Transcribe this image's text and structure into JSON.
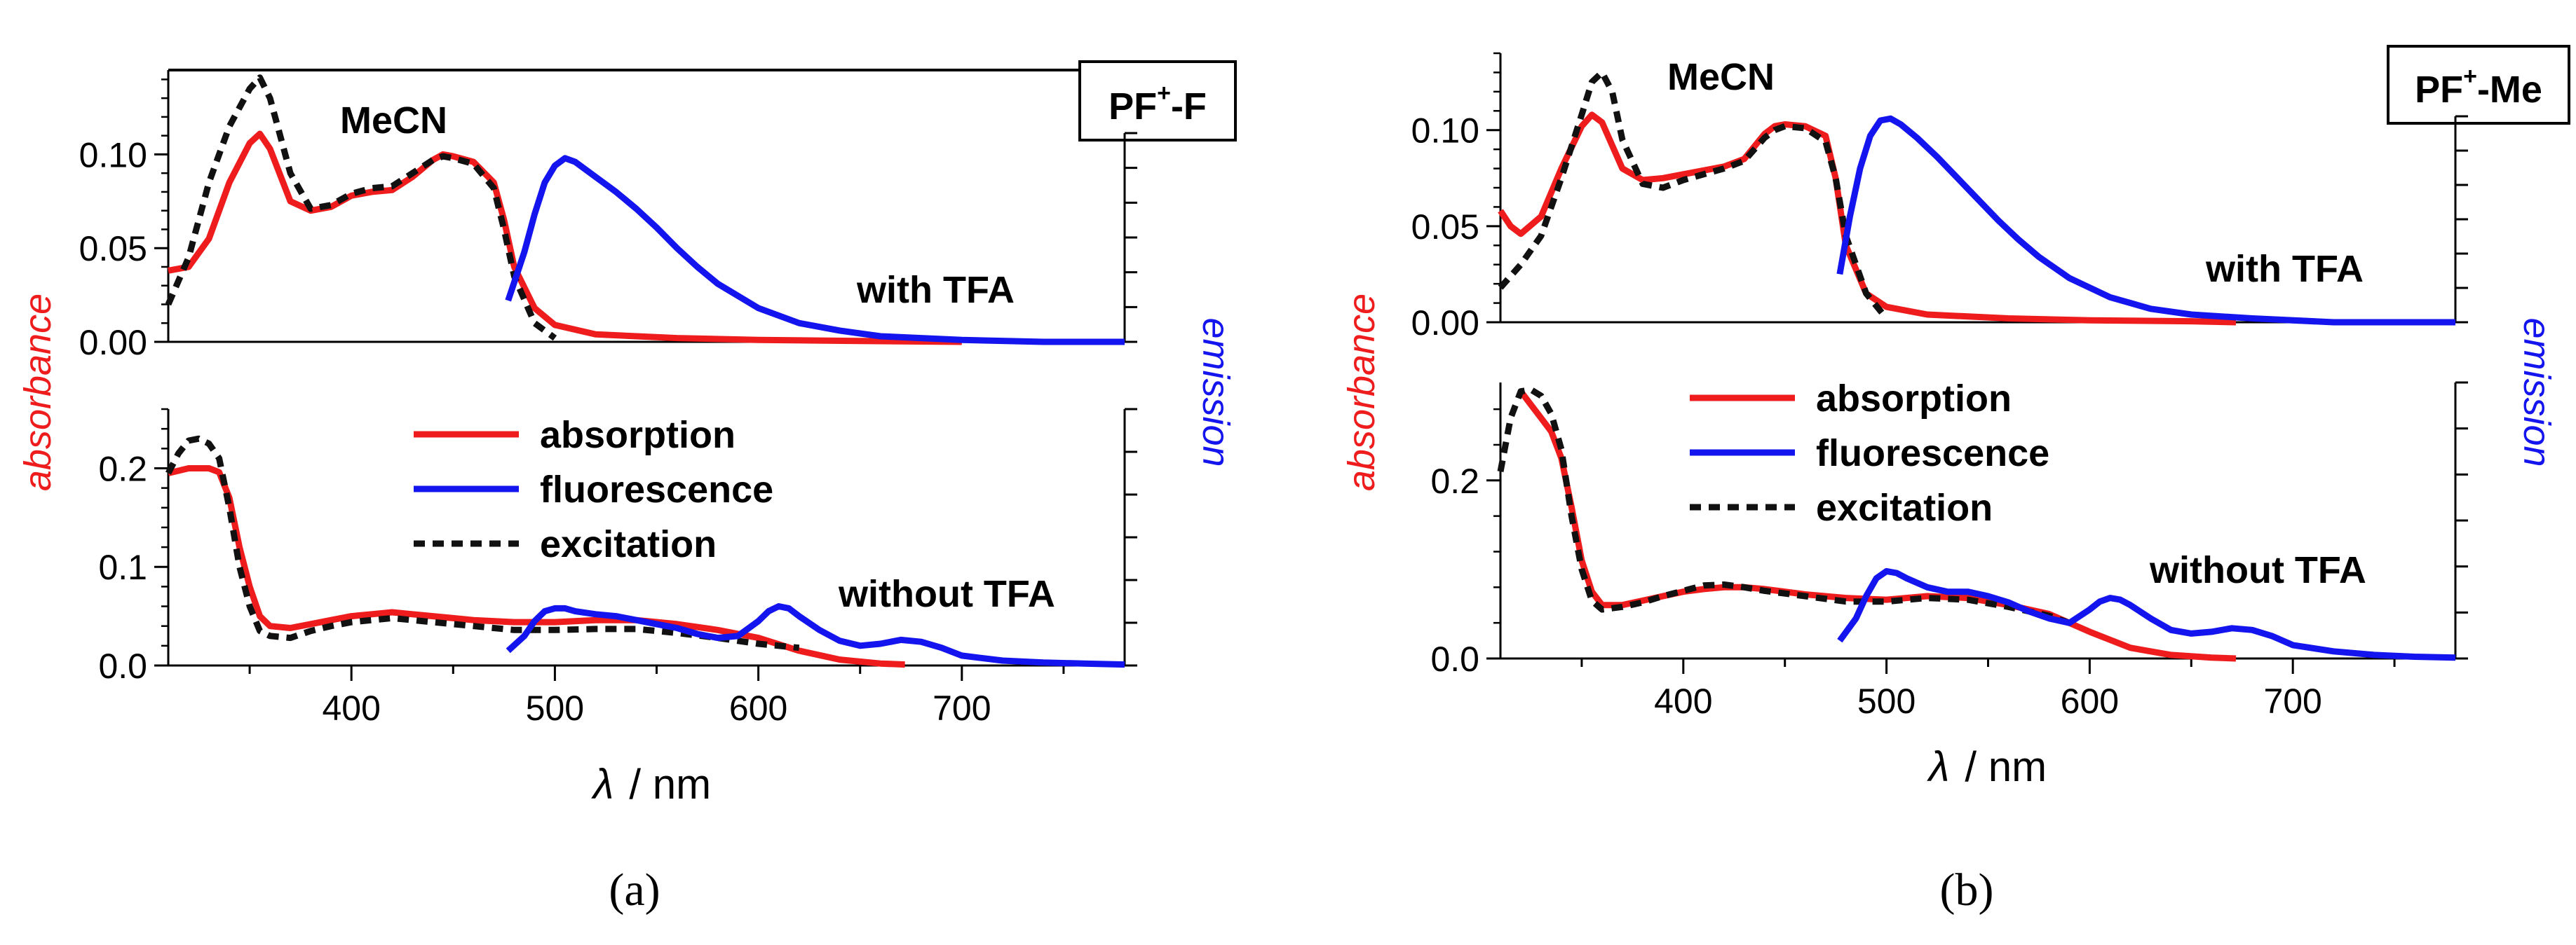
{
  "figure": {
    "captions": [
      "(a)",
      "(b)"
    ]
  },
  "chart_data": [
    {
      "type": "line",
      "tag": "PF",
      "tag_sup": "+",
      "tag_tail": "-F",
      "solvent_label": "MeCN",
      "xlabel_symbol": "λ",
      "xlabel_unit": "/  nm",
      "ylabel_left": "absorbance",
      "ylabel_right": "emission",
      "colors": {
        "absorption": "#ee1c1c",
        "fluorescence": "#1414ee",
        "excitation": "#111111"
      },
      "x_ticks": [
        400,
        500,
        600,
        700
      ],
      "xlim": [
        310,
        780
      ],
      "panels": [
        {
          "label": "with TFA",
          "ylim": [
            0,
            0.145
          ],
          "y_ticks": [
            0.0,
            0.05,
            0.1
          ],
          "y_tick_labels": [
            "0.00",
            "0.05",
            "0.10"
          ],
          "series": [
            {
              "name": "absorption",
              "x": [
                310,
                320,
                330,
                340,
                350,
                355,
                360,
                370,
                380,
                390,
                400,
                410,
                420,
                430,
                440,
                445,
                450,
                460,
                470,
                475,
                480,
                490,
                500,
                520,
                560,
                600,
                650,
                700
              ],
              "y": [
                0.038,
                0.04,
                0.055,
                0.085,
                0.106,
                0.111,
                0.103,
                0.075,
                0.07,
                0.072,
                0.078,
                0.08,
                0.081,
                0.088,
                0.097,
                0.1,
                0.099,
                0.096,
                0.085,
                0.065,
                0.04,
                0.018,
                0.009,
                0.004,
                0.002,
                0.001,
                0.0005,
                0.0
              ]
            },
            {
              "name": "excitation",
              "x": [
                310,
                320,
                330,
                340,
                350,
                355,
                360,
                370,
                380,
                390,
                400,
                410,
                420,
                430,
                440,
                445,
                450,
                460,
                470,
                475,
                480,
                490,
                500
              ],
              "y": [
                0.02,
                0.045,
                0.085,
                0.115,
                0.135,
                0.141,
                0.13,
                0.09,
                0.071,
                0.073,
                0.079,
                0.082,
                0.083,
                0.09,
                0.097,
                0.099,
                0.098,
                0.095,
                0.082,
                0.06,
                0.035,
                0.01,
                0.002
              ]
            },
            {
              "name": "fluorescence",
              "x": [
                477,
                485,
                490,
                495,
                500,
                505,
                510,
                520,
                530,
                540,
                550,
                560,
                570,
                580,
                600,
                620,
                640,
                660,
                680,
                700,
                740,
                780
              ],
              "y": [
                0.022,
                0.048,
                0.068,
                0.085,
                0.094,
                0.098,
                0.096,
                0.088,
                0.08,
                0.071,
                0.061,
                0.05,
                0.04,
                0.031,
                0.018,
                0.01,
                0.006,
                0.003,
                0.002,
                0.001,
                0.0,
                0.0
              ]
            }
          ]
        },
        {
          "label": "without TFA",
          "ylim": [
            0,
            0.26
          ],
          "y_ticks": [
            0.0,
            0.1,
            0.2
          ],
          "y_tick_labels": [
            "0.0",
            "0.1",
            "0.2"
          ],
          "series": [
            {
              "name": "absorption",
              "x": [
                310,
                320,
                330,
                335,
                340,
                345,
                350,
                355,
                360,
                370,
                380,
                390,
                400,
                410,
                420,
                430,
                440,
                460,
                480,
                500,
                520,
                540,
                560,
                580,
                600,
                620,
                640,
                660,
                672
              ],
              "y": [
                0.195,
                0.2,
                0.2,
                0.196,
                0.17,
                0.12,
                0.08,
                0.05,
                0.04,
                0.038,
                0.042,
                0.046,
                0.05,
                0.052,
                0.054,
                0.052,
                0.05,
                0.046,
                0.044,
                0.044,
                0.046,
                0.046,
                0.042,
                0.036,
                0.028,
                0.015,
                0.006,
                0.002,
                0.001
              ]
            },
            {
              "name": "excitation",
              "x": [
                310,
                315,
                320,
                325,
                330,
                335,
                340,
                345,
                350,
                355,
                360,
                370,
                380,
                390,
                400,
                410,
                420,
                430,
                440,
                460,
                480,
                500,
                520,
                540,
                560,
                580,
                600,
                620
              ],
              "y": [
                0.195,
                0.215,
                0.228,
                0.23,
                0.225,
                0.21,
                0.16,
                0.1,
                0.06,
                0.035,
                0.03,
                0.028,
                0.035,
                0.04,
                0.044,
                0.046,
                0.048,
                0.046,
                0.044,
                0.04,
                0.036,
                0.036,
                0.037,
                0.037,
                0.033,
                0.028,
                0.022,
                0.018
              ]
            },
            {
              "name": "fluorescence",
              "x": [
                477,
                485,
                490,
                495,
                500,
                505,
                510,
                520,
                530,
                540,
                550,
                560,
                570,
                580,
                590,
                600,
                605,
                610,
                615,
                620,
                630,
                640,
                650,
                660,
                670,
                680,
                690,
                700,
                720,
                740,
                760,
                780
              ],
              "y": [
                0.015,
                0.03,
                0.045,
                0.055,
                0.058,
                0.058,
                0.055,
                0.052,
                0.05,
                0.046,
                0.042,
                0.038,
                0.032,
                0.028,
                0.03,
                0.045,
                0.055,
                0.06,
                0.058,
                0.05,
                0.036,
                0.025,
                0.02,
                0.022,
                0.026,
                0.024,
                0.018,
                0.01,
                0.005,
                0.003,
                0.002,
                0.001
              ]
            }
          ]
        }
      ],
      "legend": [
        {
          "name": "absorption",
          "style": "solid"
        },
        {
          "name": "fluorescence",
          "style": "solid"
        },
        {
          "name": "excitation",
          "style": "dotted"
        }
      ]
    },
    {
      "type": "line",
      "tag": "PF",
      "tag_sup": "+",
      "tag_tail": "-Me",
      "solvent_label": "MeCN",
      "xlabel_symbol": "λ",
      "xlabel_unit": "/  nm",
      "ylabel_left": "absorbance",
      "ylabel_right": "emission",
      "colors": {
        "absorption": "#ee1c1c",
        "fluorescence": "#1414ee",
        "excitation": "#111111"
      },
      "x_ticks": [
        400,
        500,
        600,
        700
      ],
      "xlim": [
        310,
        780
      ],
      "panels": [
        {
          "label": "with TFA",
          "ylim": [
            0,
            0.14
          ],
          "y_ticks": [
            0.0,
            0.05,
            0.1
          ],
          "y_tick_labels": [
            "0.00",
            "0.05",
            "0.10"
          ],
          "series": [
            {
              "name": "absorption",
              "x": [
                310,
                315,
                320,
                330,
                340,
                350,
                355,
                360,
                370,
                380,
                390,
                400,
                410,
                420,
                430,
                440,
                445,
                450,
                460,
                470,
                475,
                480,
                490,
                500,
                520,
                560,
                600,
                650,
                672
              ],
              "y": [
                0.058,
                0.05,
                0.046,
                0.055,
                0.08,
                0.102,
                0.108,
                0.104,
                0.08,
                0.074,
                0.075,
                0.077,
                0.079,
                0.081,
                0.085,
                0.098,
                0.102,
                0.103,
                0.102,
                0.097,
                0.075,
                0.04,
                0.015,
                0.008,
                0.004,
                0.002,
                0.001,
                0.0005,
                0.0
              ]
            },
            {
              "name": "excitation",
              "x": [
                310,
                320,
                330,
                340,
                350,
                355,
                360,
                365,
                370,
                380,
                390,
                400,
                410,
                420,
                430,
                440,
                445,
                450,
                460,
                470,
                475,
                480,
                490,
                500
              ],
              "y": [
                0.018,
                0.03,
                0.045,
                0.075,
                0.108,
                0.125,
                0.13,
                0.12,
                0.095,
                0.072,
                0.07,
                0.074,
                0.077,
                0.08,
                0.084,
                0.096,
                0.1,
                0.102,
                0.101,
                0.094,
                0.075,
                0.045,
                0.015,
                0.002
              ]
            },
            {
              "name": "fluorescence",
              "x": [
                477,
                482,
                487,
                492,
                497,
                502,
                507,
                515,
                525,
                535,
                545,
                555,
                565,
                575,
                590,
                610,
                630,
                650,
                680,
                720,
                780
              ],
              "y": [
                0.025,
                0.055,
                0.08,
                0.097,
                0.105,
                0.106,
                0.103,
                0.096,
                0.086,
                0.075,
                0.064,
                0.053,
                0.043,
                0.034,
                0.023,
                0.013,
                0.007,
                0.004,
                0.002,
                0.0,
                0.0
              ]
            }
          ]
        },
        {
          "label": "without TFA",
          "ylim": [
            0,
            0.31
          ],
          "y_ticks": [
            0.0,
            0.2
          ],
          "y_tick_labels": [
            "0.0",
            "0.2"
          ],
          "series": [
            {
              "name": "absorption",
              "x": [
                320,
                325,
                330,
                335,
                340,
                345,
                350,
                355,
                360,
                370,
                380,
                390,
                400,
                410,
                420,
                430,
                440,
                460,
                480,
                500,
                520,
                540,
                560,
                580,
                600,
                620,
                640,
                660,
                672
              ],
              "y": [
                0.3,
                0.285,
                0.27,
                0.255,
                0.225,
                0.17,
                0.11,
                0.075,
                0.06,
                0.06,
                0.065,
                0.07,
                0.075,
                0.078,
                0.08,
                0.08,
                0.078,
                0.072,
                0.068,
                0.066,
                0.07,
                0.068,
                0.06,
                0.05,
                0.03,
                0.012,
                0.004,
                0.001,
                0.0
              ]
            },
            {
              "name": "excitation",
              "x": [
                310,
                315,
                320,
                325,
                330,
                335,
                340,
                345,
                350,
                355,
                360,
                370,
                380,
                390,
                400,
                410,
                420,
                430,
                440,
                460,
                480,
                500,
                520,
                540,
                560,
                580,
                590
              ],
              "y": [
                0.21,
                0.27,
                0.3,
                0.302,
                0.295,
                0.275,
                0.235,
                0.16,
                0.1,
                0.065,
                0.055,
                0.058,
                0.063,
                0.07,
                0.076,
                0.082,
                0.083,
                0.08,
                0.076,
                0.07,
                0.064,
                0.064,
                0.068,
                0.066,
                0.058,
                0.048,
                0.04
              ]
            },
            {
              "name": "fluorescence",
              "x": [
                477,
                485,
                490,
                495,
                500,
                505,
                510,
                520,
                530,
                540,
                550,
                560,
                570,
                580,
                590,
                600,
                605,
                610,
                615,
                620,
                630,
                640,
                650,
                660,
                670,
                680,
                690,
                700,
                720,
                740,
                760,
                780
              ],
              "y": [
                0.02,
                0.045,
                0.07,
                0.09,
                0.098,
                0.096,
                0.09,
                0.08,
                0.075,
                0.075,
                0.07,
                0.063,
                0.053,
                0.045,
                0.04,
                0.055,
                0.064,
                0.068,
                0.066,
                0.06,
                0.045,
                0.032,
                0.028,
                0.03,
                0.034,
                0.032,
                0.025,
                0.015,
                0.008,
                0.004,
                0.002,
                0.001
              ]
            }
          ]
        }
      ],
      "legend": [
        {
          "name": "absorption",
          "style": "solid"
        },
        {
          "name": "fluorescence",
          "style": "solid"
        },
        {
          "name": "excitation",
          "style": "dotted"
        }
      ]
    }
  ]
}
